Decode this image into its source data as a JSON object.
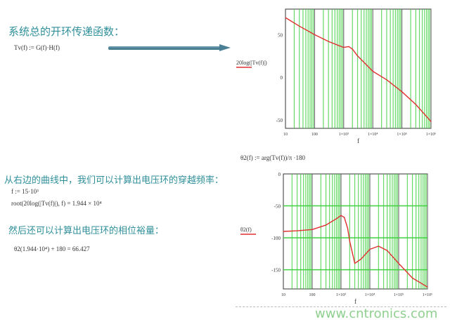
{
  "text": {
    "heading1": "系统总的开环传递函数：",
    "eq1": "Tv(f) := G(f)·H(f)",
    "heading2": "从右边的曲线中，我们可以计算出电压环的穿越频率：",
    "eq2": "f := 15·10³",
    "eq3": "root(20log(|Tv(f)|), f) = 1.944 × 10⁴",
    "heading3": "然后还可以计算出电压环的相位裕量：",
    "eq4": "θ2(1.944·10⁴) + 180 = 66.427",
    "eq5": "θ2(f) := arg(Tv(f))/π ·180",
    "watermark": "www.cntronics.com"
  },
  "chart_data": [
    {
      "type": "line",
      "xscale": "log",
      "ylabel": "20log(|Tv(f)|)",
      "xlabel": "f",
      "xlim": [
        10,
        1000000
      ],
      "ylim": [
        -60,
        80
      ],
      "xticks": [
        "10",
        "100",
        "1×10³",
        "1×10⁴",
        "1×10⁵",
        "1×10⁶"
      ],
      "yticks": [
        50,
        0,
        -50
      ],
      "color": "#e03030",
      "grid_color": "#40d040",
      "x": [
        10,
        30,
        100,
        300,
        700,
        1000,
        1500,
        2000,
        3000,
        10000,
        30000,
        100000,
        300000,
        1000000
      ],
      "y": [
        70,
        60,
        50,
        42,
        37,
        35,
        36,
        33,
        25,
        7,
        -3,
        -17,
        -32,
        -52
      ]
    },
    {
      "type": "line",
      "xscale": "log",
      "ylabel": "θ2(f)",
      "xlabel": "f",
      "xlim": [
        10,
        1000000
      ],
      "ylim": [
        -180,
        0
      ],
      "xticks": [
        "10",
        "100",
        "1×10³",
        "1×10⁴",
        "1×10⁵",
        "1×10⁶"
      ],
      "yticks": [
        0,
        -50,
        -100,
        -150
      ],
      "color": "#e03030",
      "grid_color": "#40d040",
      "x": [
        10,
        30,
        100,
        300,
        700,
        1000,
        1300,
        1700,
        2000,
        3000,
        5000,
        10000,
        20000,
        40000,
        100000,
        300000,
        1000000
      ],
      "y": [
        -90,
        -89,
        -87,
        -80,
        -70,
        -65,
        -68,
        -85,
        -105,
        -140,
        -133,
        -118,
        -113,
        -120,
        -140,
        -163,
        -177
      ]
    }
  ]
}
